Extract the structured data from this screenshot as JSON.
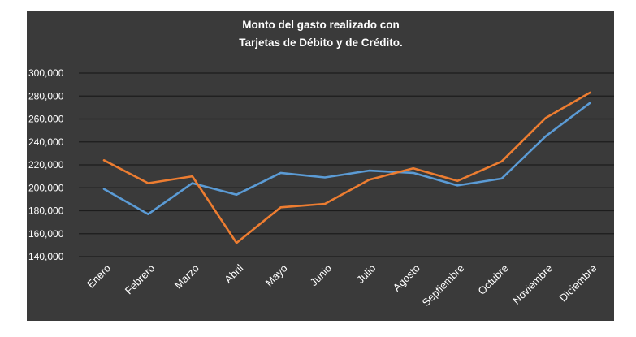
{
  "colors": {
    "background": "#3a3a3a",
    "gridline": "#1c1c1c",
    "text": "#ffffff",
    "series_blue": "#5b9bd5",
    "series_orange": "#ed7d31"
  },
  "chart_data": {
    "type": "line",
    "title": [
      "Monto del gasto realizado con",
      "Tarjetas de Débito y de Crédito."
    ],
    "xlabel": "",
    "ylabel": "",
    "categories": [
      "Enero",
      "Febrero",
      "Marzo",
      "Abril",
      "Mayo",
      "Junio",
      "Julio",
      "Agosto",
      "Septiembre",
      "Octubre",
      "Noviembre",
      "Diciembre"
    ],
    "y_ticks": [
      "140,000",
      "160,000",
      "180,000",
      "200,000",
      "220,000",
      "240,000",
      "260,000",
      "280,000",
      "300,000"
    ],
    "ylim": [
      140000,
      300000
    ],
    "grid": true,
    "legend": "none",
    "series": [
      {
        "color": "#5b9bd5",
        "values": [
          199000,
          177000,
          204000,
          194000,
          213000,
          209000,
          215000,
          213000,
          202000,
          208000,
          245000,
          274000
        ]
      },
      {
        "color": "#ed7d31",
        "values": [
          224000,
          204000,
          210000,
          152000,
          183000,
          186000,
          207000,
          217000,
          206000,
          223000,
          261000,
          283000
        ]
      }
    ]
  }
}
